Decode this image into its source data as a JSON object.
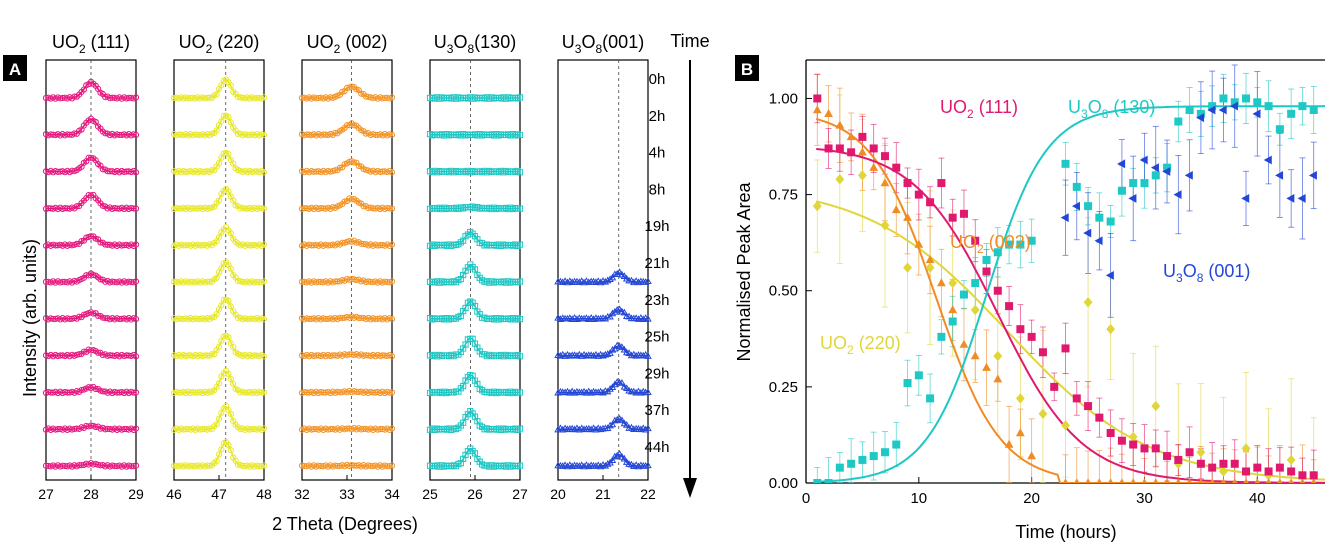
{
  "chart_data": [
    {
      "panel": "A",
      "type": "line",
      "ylabel": "Intensity (arb. units)",
      "xlabel": "2 Theta (Degrees)",
      "time_label": "Time",
      "time_points": [
        "0h",
        "2h",
        "4h",
        "8h",
        "19h",
        "21h",
        "23h",
        "25h",
        "29h",
        "37h",
        "44h"
      ],
      "subplots": [
        {
          "title_main": "UO",
          "title_sub": "2",
          "title_hkl": "(111)",
          "color": "#e6187f",
          "xlim": [
            27,
            29
          ],
          "ticks": [
            27,
            28,
            29
          ],
          "peak_center": 28.0,
          "peak_width": 0.15,
          "marker": "circle",
          "peak_heights": [
            0.55,
            0.55,
            0.5,
            0.48,
            0.32,
            0.28,
            0.22,
            0.2,
            0.18,
            0.12,
            0.08
          ]
        },
        {
          "title_main": "UO",
          "title_sub": "2",
          "title_hkl": "(220)",
          "color": "#e8e82a",
          "xlim": [
            46,
            48
          ],
          "ticks": [
            46,
            47,
            48
          ],
          "peak_center": 47.15,
          "peak_width": 0.12,
          "marker": "circle",
          "peak_heights": [
            0.65,
            0.7,
            0.68,
            0.68,
            0.62,
            0.7,
            0.7,
            0.72,
            0.75,
            0.8,
            0.85
          ]
        },
        {
          "title_main": "UO",
          "title_sub": "2",
          "title_hkl": "(002)",
          "color": "#f39426",
          "xlim": [
            32,
            34
          ],
          "ticks": [
            32,
            33,
            34
          ],
          "peak_center": 33.1,
          "peak_width": 0.17,
          "marker": "circle",
          "peak_heights": [
            0.4,
            0.38,
            0.36,
            0.34,
            0.14,
            0.1,
            0.06,
            0.04,
            0.03,
            0.02,
            0.02
          ]
        },
        {
          "title_main": "U",
          "title_sub": "3",
          "title_main2": "O",
          "title_sub2": "8",
          "title_hkl": "(130)",
          "color": "#1fc7c4",
          "xlim": [
            25,
            27
          ],
          "ticks": [
            25,
            26,
            27
          ],
          "peak_center": 25.9,
          "peak_width": 0.12,
          "marker": "square",
          "peak_heights": [
            0.0,
            0.0,
            0.0,
            0.05,
            0.45,
            0.6,
            0.62,
            0.62,
            0.62,
            0.62,
            0.6
          ]
        },
        {
          "title_main": "U",
          "title_sub": "3",
          "title_main2": "O",
          "title_sub2": "8",
          "title_hkl": "(001)",
          "color": "#2447d6",
          "xlim": [
            20,
            22
          ],
          "ticks": [
            20,
            21,
            22
          ],
          "peak_center": 21.35,
          "peak_width": 0.12,
          "marker": "triangle",
          "start_index": 5,
          "peak_heights": [
            0,
            0,
            0,
            0,
            0,
            0.32,
            0.32,
            0.34,
            0.36,
            0.36,
            0.4
          ]
        }
      ]
    },
    {
      "panel": "B",
      "type": "scatter",
      "xlabel": "Time (hours)",
      "ylabel": "Normalised Peak Area",
      "xlim": [
        0,
        46
      ],
      "ylim": [
        0,
        1.1
      ],
      "xticks": [
        0,
        10,
        20,
        30,
        40
      ],
      "yticks": [
        "0.00",
        "0.25",
        "0.50",
        "0.75",
        "1.00"
      ],
      "series": [
        {
          "id": "uo2_220",
          "label_main": "UO",
          "label_sub": "2",
          "label_hkl": "(220)",
          "color": "#e0d63a",
          "marker": "diamond",
          "err": 0.2,
          "fit": {
            "kind": "decay",
            "A": 0.78,
            "t0": 18,
            "k": 0.16
          },
          "x": [
            1,
            3,
            5,
            7,
            9,
            11,
            13,
            15,
            17,
            19,
            21,
            23,
            25,
            27,
            29,
            31,
            33,
            35,
            37,
            39,
            41,
            43,
            45
          ],
          "y": [
            0.72,
            0.79,
            0.8,
            0.67,
            0.56,
            0.56,
            0.52,
            0.45,
            0.33,
            0.22,
            0.18,
            0.15,
            0.47,
            0.4,
            0.12,
            0.2,
            0.05,
            0.08,
            0.03,
            0.09,
            0.02,
            0.06,
            0.02
          ]
        },
        {
          "id": "uo2_002",
          "label_main": "UO",
          "label_sub": "2",
          "label_hkl": "(002)",
          "color": "#f08c23",
          "marker": "triangle-up",
          "err": 0.09,
          "fit": {
            "kind": "decay",
            "A": 0.97,
            "t0": 11.5,
            "k": 0.35
          },
          "x": [
            1,
            2,
            3,
            4,
            5,
            6,
            7,
            8,
            9,
            10,
            11,
            12,
            13,
            14,
            15,
            16,
            17,
            18,
            19,
            20,
            23,
            24,
            25,
            26,
            27,
            28,
            29,
            30,
            31,
            32,
            33,
            34,
            35,
            36,
            37,
            38,
            39,
            40,
            41,
            42,
            43,
            44,
            45
          ],
          "y": [
            0.97,
            0.96,
            0.93,
            0.9,
            0.86,
            0.82,
            0.78,
            0.71,
            0.69,
            0.62,
            0.58,
            0.52,
            0.45,
            0.36,
            0.33,
            0.3,
            0.27,
            0.1,
            0.13,
            0.07,
            0,
            0,
            0,
            0,
            0,
            0,
            0,
            0,
            0,
            0,
            0,
            0,
            0,
            0,
            0,
            0,
            0,
            0,
            0,
            0,
            0,
            0,
            0
          ]
        },
        {
          "id": "uo2_111",
          "label_main": "UO",
          "label_sub": "2",
          "label_hkl": "(111)",
          "color": "#e0196f",
          "marker": "square",
          "err": 0.06,
          "fit": {
            "kind": "decay",
            "A": 0.88,
            "t0": 17,
            "k": 0.27
          },
          "x": [
            1,
            2,
            3,
            4,
            5,
            6,
            7,
            8,
            9,
            10,
            11,
            12,
            13,
            14,
            15,
            16,
            17,
            18,
            19,
            20,
            21,
            22,
            23,
            24,
            25,
            26,
            27,
            28,
            29,
            30,
            31,
            32,
            33,
            34,
            35,
            36,
            37,
            38,
            39,
            40,
            41,
            42,
            43,
            44,
            45
          ],
          "y": [
            1.0,
            0.87,
            0.87,
            0.86,
            0.9,
            0.87,
            0.85,
            0.82,
            0.78,
            0.75,
            0.73,
            0.78,
            0.69,
            0.7,
            0.63,
            0.55,
            0.5,
            0.46,
            0.4,
            0.38,
            0.34,
            0.25,
            0.35,
            0.22,
            0.2,
            0.17,
            0.13,
            0.11,
            0.1,
            0.09,
            0.09,
            0.07,
            0.06,
            0.08,
            0.05,
            0.04,
            0.05,
            0.05,
            0.03,
            0.04,
            0.03,
            0.04,
            0.03,
            0.02,
            0.02
          ]
        },
        {
          "id": "u3o8_130",
          "label_main": "U",
          "label_sub": "3",
          "label_main2": "O",
          "label_sub2": "8",
          "label_hkl": "(130)",
          "color": "#1ec8c4",
          "marker": "square",
          "err": 0.06,
          "fit": {
            "kind": "growth",
            "A": 0.98,
            "t0": 16,
            "k": 0.38
          },
          "x": [
            1,
            2,
            3,
            4,
            5,
            6,
            7,
            8,
            9,
            10,
            11,
            12,
            13,
            14,
            15,
            16,
            17,
            18,
            19,
            20,
            23,
            24,
            25,
            26,
            27,
            28,
            29,
            30,
            31,
            32,
            33,
            34,
            35,
            36,
            37,
            38,
            39,
            40,
            41,
            42,
            43,
            44,
            45
          ],
          "y": [
            0.0,
            0.0,
            0.04,
            0.05,
            0.06,
            0.07,
            0.08,
            0.1,
            0.26,
            0.28,
            0.22,
            0.38,
            0.42,
            0.49,
            0.52,
            0.58,
            0.6,
            0.62,
            0.62,
            0.63,
            0.83,
            0.77,
            0.72,
            0.69,
            0.68,
            0.76,
            0.78,
            0.78,
            0.8,
            0.82,
            0.94,
            0.97,
            0.96,
            0.98,
            1.0,
            0.99,
            1.0,
            0.99,
            0.98,
            0.92,
            0.96,
            0.98,
            0.97
          ]
        },
        {
          "id": "u3o8_001",
          "label_main": "U",
          "label_sub": "3",
          "label_main2": "O",
          "label_sub2": "8",
          "label_hkl": "(001)",
          "color": "#2346d8",
          "marker": "triangle-left",
          "err": 0.1,
          "x": [
            23,
            24,
            25,
            26,
            27,
            28,
            29,
            30,
            31,
            32,
            33,
            34,
            35,
            36,
            37,
            38,
            39,
            40,
            41,
            42,
            43,
            44,
            45
          ],
          "y": [
            0.69,
            0.72,
            0.65,
            0.63,
            0.54,
            0.83,
            0.74,
            0.84,
            0.82,
            0.81,
            0.75,
            0.8,
            0.95,
            0.97,
            0.97,
            0.98,
            0.74,
            0.96,
            0.84,
            0.8,
            0.74,
            0.74,
            0.8
          ]
        }
      ]
    }
  ]
}
